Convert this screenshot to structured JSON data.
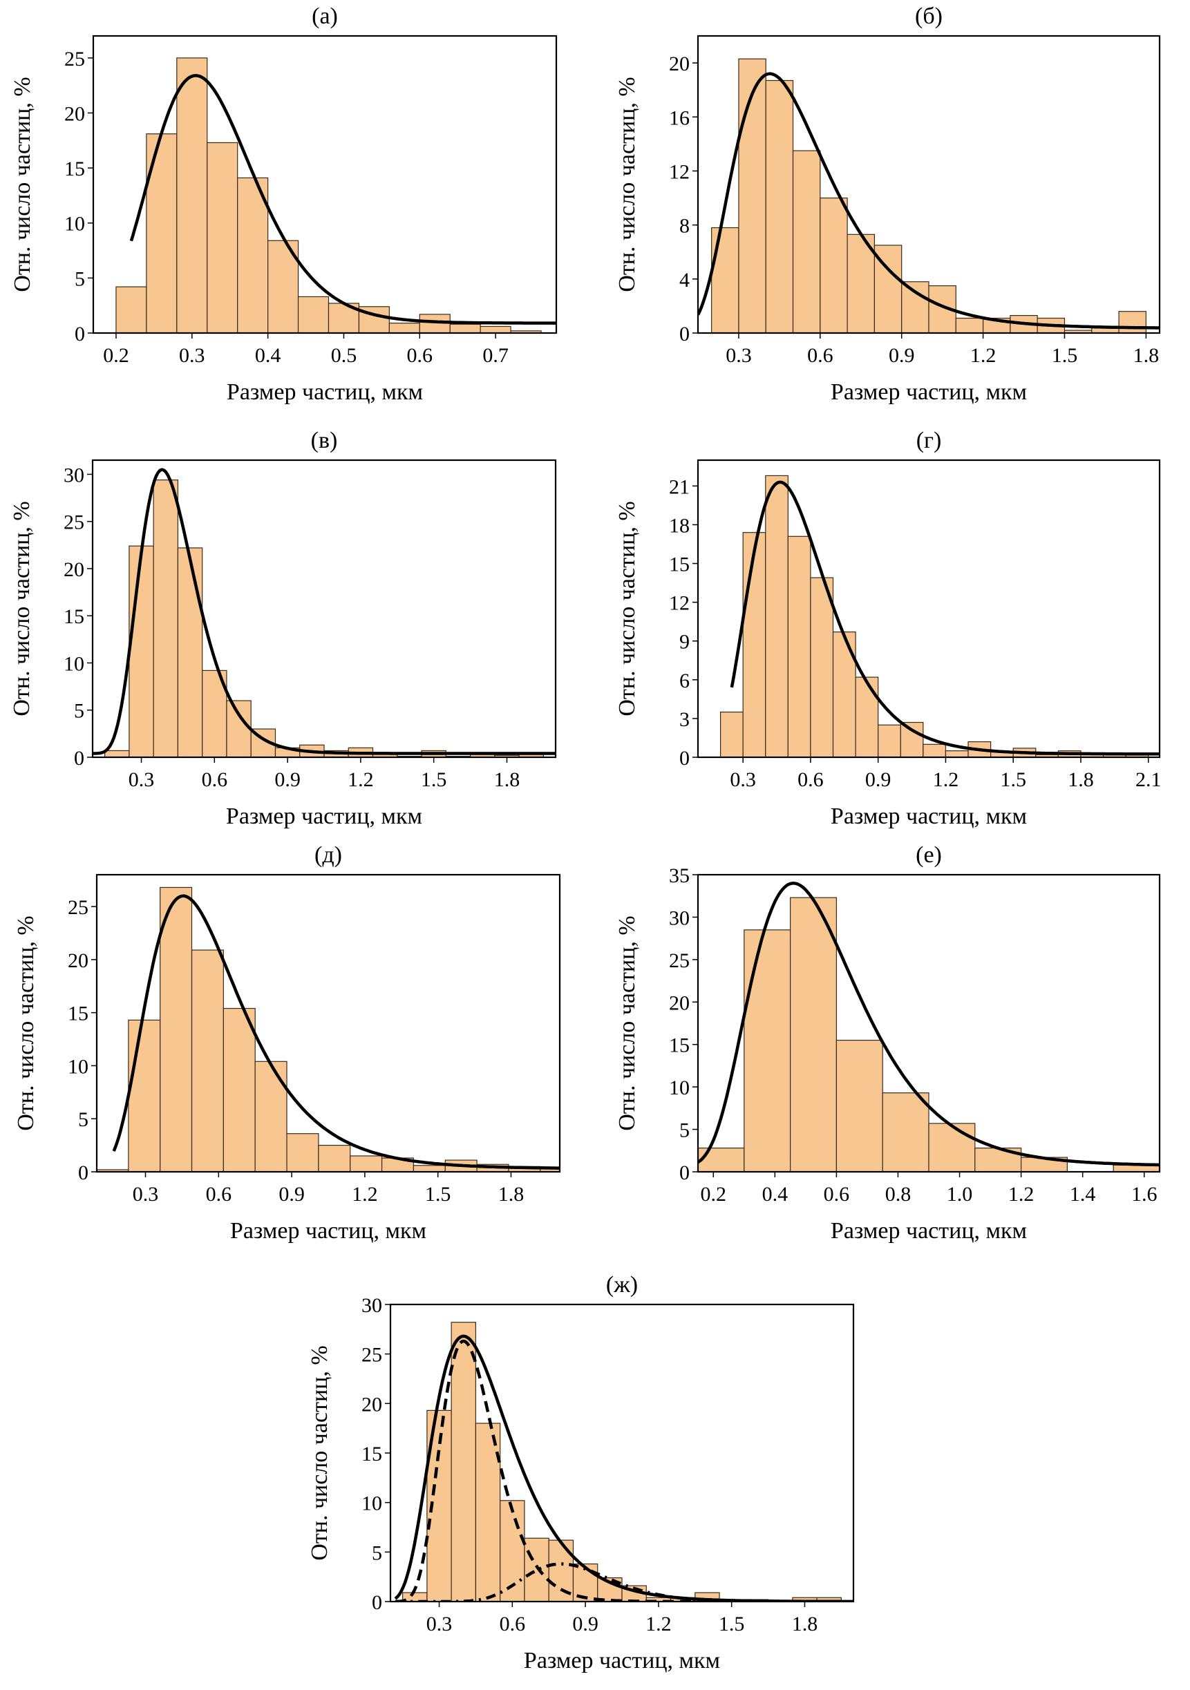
{
  "figure": {
    "bar_color": "#F8C690",
    "bar_edge": "#3a2a1a",
    "curve_color": "#000000"
  },
  "chart_data": [
    {
      "id": "a",
      "type": "bar",
      "title": "(а)",
      "xlabel": "Размер частиц, мкм",
      "ylabel": "Отн. число частиц, %",
      "xlim": [
        0.17,
        0.78
      ],
      "ylim": [
        0,
        27
      ],
      "xticks": [
        0.2,
        0.3,
        0.4,
        0.5,
        0.6,
        0.7
      ],
      "xtick_labels": [
        "0.2",
        "0.3",
        "0.4",
        "0.5",
        "0.6",
        "0.7"
      ],
      "yticks": [
        0,
        5,
        10,
        15,
        20,
        25
      ],
      "ytick_labels": [
        "0",
        "5",
        "10",
        "15",
        "20",
        "25"
      ],
      "bin_start": 0.2,
      "bin_width": 0.04,
      "values": [
        4.2,
        18.1,
        25.0,
        17.3,
        14.1,
        8.4,
        3.3,
        2.7,
        2.4,
        0.9,
        1.7,
        0.8,
        0.6,
        0.2
      ],
      "curves": [
        {
          "name": "fit",
          "style": "solid",
          "x_range": [
            0.22,
            0.78
          ],
          "peak_x": 0.305,
          "peak_y": 23.4,
          "sigma": 0.22,
          "baseline": 0.9
        }
      ]
    },
    {
      "id": "b",
      "type": "bar",
      "title": "(б)",
      "xlabel": "Размер частиц, мкм",
      "ylabel": "Отн. число частиц, %",
      "xlim": [
        0.15,
        1.85
      ],
      "ylim": [
        0,
        22
      ],
      "xticks": [
        0.3,
        0.6,
        0.9,
        1.2,
        1.5,
        1.8
      ],
      "xtick_labels": [
        "0.3",
        "0.6",
        "0.9",
        "1.2",
        "1.5",
        "1.8"
      ],
      "yticks": [
        0,
        4,
        8,
        12,
        16,
        20
      ],
      "ytick_labels": [
        "0",
        "4",
        "8",
        "12",
        "16",
        "20"
      ],
      "bin_start": 0.2,
      "bin_width": 0.1,
      "values": [
        7.8,
        20.3,
        18.7,
        13.5,
        10.0,
        7.3,
        6.5,
        3.8,
        3.5,
        1.1,
        1.1,
        1.3,
        1.1,
        0.2,
        0.4,
        1.6
      ],
      "curves": [
        {
          "name": "fit",
          "style": "solid",
          "x_range": [
            0.15,
            1.85
          ],
          "peak_x": 0.415,
          "peak_y": 19.2,
          "sigma": 0.42,
          "baseline": 0.35
        }
      ]
    },
    {
      "id": "v",
      "type": "bar",
      "title": "(в)",
      "xlabel": "Размер частиц, мкм",
      "ylabel": "Отн. число частиц, %",
      "xlim": [
        0.1,
        2.0
      ],
      "ylim": [
        0,
        31.5
      ],
      "xticks": [
        0.3,
        0.6,
        0.9,
        1.2,
        1.5,
        1.8
      ],
      "xtick_labels": [
        "0.3",
        "0.6",
        "0.9",
        "1.2",
        "1.5",
        "1.8"
      ],
      "yticks": [
        0,
        5,
        10,
        15,
        20,
        25,
        30
      ],
      "ytick_labels": [
        "0",
        "5",
        "10",
        "15",
        "20",
        "25",
        "30"
      ],
      "bin_start": 0.15,
      "bin_width": 0.1,
      "values": [
        0.7,
        22.4,
        29.4,
        22.2,
        9.2,
        6.0,
        3.0,
        1.0,
        1.3,
        0.7,
        1.0,
        0.4,
        0.1,
        0.7,
        0.1,
        0.3,
        0.2,
        0.3
      ],
      "curves": [
        {
          "name": "fit",
          "style": "solid",
          "x_range": [
            0.1,
            2.0
          ],
          "peak_x": 0.385,
          "peak_y": 30.5,
          "sigma": 0.3,
          "baseline": 0.4
        }
      ]
    },
    {
      "id": "g",
      "type": "bar",
      "title": "(г)",
      "xlabel": "Размер частиц, мкм",
      "ylabel": "Отн. число частиц, %",
      "xlim": [
        0.1,
        2.15
      ],
      "ylim": [
        0,
        23
      ],
      "xticks": [
        0.3,
        0.6,
        0.9,
        1.2,
        1.5,
        1.8,
        2.1
      ],
      "xtick_labels": [
        "0.3",
        "0.6",
        "0.9",
        "1.2",
        "1.5",
        "1.8",
        "2.1"
      ],
      "yticks": [
        0,
        3,
        6,
        9,
        12,
        15,
        18,
        21
      ],
      "ytick_labels": [
        "0",
        "3",
        "6",
        "9",
        "12",
        "15",
        "18",
        "21"
      ],
      "bin_start": 0.2,
      "bin_width": 0.1,
      "values": [
        3.5,
        17.4,
        21.8,
        17.1,
        13.9,
        9.7,
        6.2,
        2.5,
        2.7,
        1.0,
        0.5,
        1.2,
        0.4,
        0.7,
        0.2,
        0.5,
        0.2,
        0.2,
        0.2
      ],
      "curves": [
        {
          "name": "fit",
          "style": "solid",
          "x_range": [
            0.25,
            2.15
          ],
          "peak_x": 0.465,
          "peak_y": 21.3,
          "sigma": 0.37,
          "baseline": 0.25
        }
      ]
    },
    {
      "id": "d",
      "type": "bar",
      "title": "(д)",
      "xlabel": "Размер частиц, мкм",
      "ylabel": "Отн. число частиц, %",
      "xlim": [
        0.1,
        2.0
      ],
      "ylim": [
        0,
        28
      ],
      "xticks": [
        0.3,
        0.6,
        0.9,
        1.2,
        1.5,
        1.8
      ],
      "xtick_labels": [
        "0.3",
        "0.6",
        "0.9",
        "1.2",
        "1.5",
        "1.8"
      ],
      "yticks": [
        0,
        5,
        10,
        15,
        20,
        25
      ],
      "ytick_labels": [
        "0",
        "5",
        "10",
        "15",
        "20",
        "25"
      ],
      "bin_start": 0.1,
      "bin_width": 0.13,
      "values": [
        0.2,
        14.3,
        26.8,
        20.9,
        15.4,
        10.4,
        3.6,
        2.5,
        1.5,
        1.3,
        0.6,
        1.1,
        0.7,
        0.5,
        0.3
      ],
      "curves": [
        {
          "name": "fit",
          "style": "solid",
          "x_range": [
            0.17,
            2.0
          ],
          "peak_x": 0.455,
          "peak_y": 26.0,
          "sigma": 0.42,
          "baseline": 0.3
        }
      ]
    },
    {
      "id": "e",
      "type": "bar",
      "title": "(е)",
      "xlabel": "Размер частиц, мкм",
      "ylabel": "Отн. число частиц, %",
      "xlim": [
        0.15,
        1.65
      ],
      "ylim": [
        0,
        35
      ],
      "xticks": [
        0.2,
        0.4,
        0.6,
        0.8,
        1.0,
        1.2,
        1.4,
        1.6
      ],
      "xtick_labels": [
        "0.2",
        "0.4",
        "0.6",
        "0.8",
        "1.0",
        "1.2",
        "1.4",
        "1.6"
      ],
      "yticks": [
        0,
        5,
        10,
        15,
        20,
        25,
        30,
        35
      ],
      "ytick_labels": [
        "0",
        "5",
        "10",
        "15",
        "20",
        "25",
        "30",
        "35"
      ],
      "bin_start": 0.15,
      "bin_width": 0.15,
      "values": [
        2.8,
        28.5,
        32.3,
        15.5,
        9.3,
        5.7,
        2.8,
        1.7,
        0.0,
        0.8
      ],
      "curves": [
        {
          "name": "fit",
          "style": "solid",
          "x_range": [
            0.15,
            1.65
          ],
          "peak_x": 0.46,
          "peak_y": 34.0,
          "sigma": 0.38,
          "baseline": 0.7
        }
      ]
    },
    {
      "id": "zh",
      "type": "bar",
      "title": "(ж)",
      "xlabel": "Размер частиц, мкм",
      "ylabel": "Отн. число частиц, %",
      "xlim": [
        0.1,
        2.0
      ],
      "ylim": [
        0,
        30
      ],
      "xticks": [
        0.3,
        0.6,
        0.9,
        1.2,
        1.5,
        1.8
      ],
      "xtick_labels": [
        "0.3",
        "0.6",
        "0.9",
        "1.2",
        "1.5",
        "1.8"
      ],
      "yticks": [
        0,
        5,
        10,
        15,
        20,
        25,
        30
      ],
      "ytick_labels": [
        "0",
        "5",
        "10",
        "15",
        "20",
        "25",
        "30"
      ],
      "bin_start": 0.15,
      "bin_width": 0.1,
      "values": [
        0.9,
        19.3,
        28.2,
        18.0,
        10.2,
        6.4,
        6.2,
        3.8,
        2.4,
        1.6,
        0.4,
        0.4,
        0.9,
        0.1,
        0.2,
        0.1,
        0.4,
        0.4
      ],
      "curves": [
        {
          "name": "sum-fit",
          "style": "solid",
          "x_range": [
            0.12,
            2.0
          ],
          "peak_x": 0.4,
          "peak_y": 26.8,
          "sigma": 0.4,
          "baseline": 0.0
        },
        {
          "name": "component-1",
          "style": "dashed",
          "x_range": [
            0.12,
            1.4
          ],
          "peak_x": 0.4,
          "peak_y": 26.3,
          "sigma": 0.28,
          "baseline": 0.0
        },
        {
          "name": "component-2",
          "style": "dashdot",
          "x_range": [
            0.12,
            1.4
          ],
          "peak_x": 0.8,
          "peak_y": 3.8,
          "sigma": 0.22,
          "baseline": 0.0
        }
      ]
    }
  ]
}
